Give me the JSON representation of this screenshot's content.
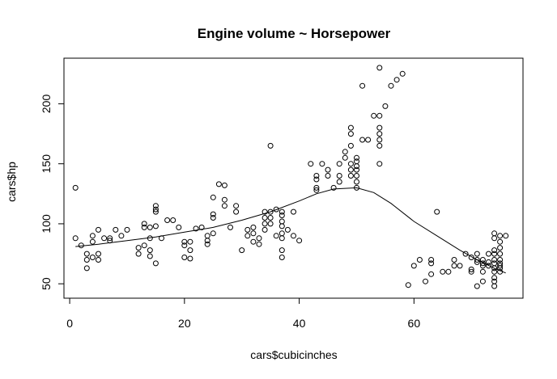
{
  "chart_data": {
    "type": "scatter",
    "title": "Engine volume ~ Horsepower",
    "xlabel": "cars$cubicinches",
    "ylabel": "cars$hp",
    "xlim": [
      -1,
      79
    ],
    "ylim": [
      38,
      238
    ],
    "xticks": [
      0,
      20,
      40,
      60
    ],
    "yticks": [
      50,
      100,
      150,
      200
    ],
    "grid": false,
    "legend": "none",
    "series": [
      {
        "points": [
          [
            1,
            130
          ],
          [
            1,
            88
          ],
          [
            2,
            82
          ],
          [
            3,
            75
          ],
          [
            3,
            70
          ],
          [
            3,
            63
          ],
          [
            4,
            90
          ],
          [
            4,
            85
          ],
          [
            4,
            72
          ],
          [
            5,
            95
          ],
          [
            5,
            75
          ],
          [
            5,
            70
          ],
          [
            6,
            88
          ],
          [
            7,
            88
          ],
          [
            7,
            86
          ],
          [
            8,
            95
          ],
          [
            9,
            90
          ],
          [
            10,
            95
          ],
          [
            12,
            80
          ],
          [
            12,
            75
          ],
          [
            13,
            100
          ],
          [
            13,
            97
          ],
          [
            13,
            82
          ],
          [
            14,
            88
          ],
          [
            14,
            78
          ],
          [
            14,
            73
          ],
          [
            14,
            97
          ],
          [
            15,
            110
          ],
          [
            15,
            115
          ],
          [
            15,
            112
          ],
          [
            15,
            98
          ],
          [
            15,
            67
          ],
          [
            16,
            88
          ],
          [
            17,
            103
          ],
          [
            18,
            103
          ],
          [
            19,
            97
          ],
          [
            20,
            85
          ],
          [
            20,
            82
          ],
          [
            20,
            72
          ],
          [
            21,
            85
          ],
          [
            21,
            78
          ],
          [
            21,
            71
          ],
          [
            22,
            96
          ],
          [
            23,
            97
          ],
          [
            24,
            90
          ],
          [
            24,
            86
          ],
          [
            24,
            83
          ],
          [
            25,
            122
          ],
          [
            25,
            108
          ],
          [
            25,
            105
          ],
          [
            25,
            92
          ],
          [
            26,
            133
          ],
          [
            27,
            132
          ],
          [
            27,
            120
          ],
          [
            27,
            115
          ],
          [
            28,
            97
          ],
          [
            29,
            115
          ],
          [
            29,
            110
          ],
          [
            30,
            78
          ],
          [
            31,
            95
          ],
          [
            31,
            90
          ],
          [
            32,
            97
          ],
          [
            32,
            92
          ],
          [
            32,
            85
          ],
          [
            33,
            88
          ],
          [
            33,
            83
          ],
          [
            34,
            110
          ],
          [
            34,
            105
          ],
          [
            34,
            100
          ],
          [
            34,
            95
          ],
          [
            35,
            165
          ],
          [
            35,
            110
          ],
          [
            35,
            105
          ],
          [
            35,
            100
          ],
          [
            36,
            112
          ],
          [
            36,
            90
          ],
          [
            37,
            110
          ],
          [
            37,
            107
          ],
          [
            37,
            102
          ],
          [
            37,
            98
          ],
          [
            37,
            92
          ],
          [
            37,
            88
          ],
          [
            37,
            78
          ],
          [
            37,
            72
          ],
          [
            38,
            95
          ],
          [
            39,
            110
          ],
          [
            39,
            90
          ],
          [
            40,
            86
          ],
          [
            42,
            150
          ],
          [
            43,
            140
          ],
          [
            43,
            137
          ],
          [
            43,
            130
          ],
          [
            43,
            128
          ],
          [
            44,
            150
          ],
          [
            45,
            145
          ],
          [
            45,
            140
          ],
          [
            46,
            130
          ],
          [
            47,
            150
          ],
          [
            47,
            140
          ],
          [
            47,
            135
          ],
          [
            48,
            160
          ],
          [
            48,
            155
          ],
          [
            49,
            180
          ],
          [
            49,
            175
          ],
          [
            49,
            165
          ],
          [
            49,
            150
          ],
          [
            49,
            145
          ],
          [
            49,
            140
          ],
          [
            50,
            155
          ],
          [
            50,
            152
          ],
          [
            50,
            148
          ],
          [
            50,
            145
          ],
          [
            50,
            140
          ],
          [
            50,
            135
          ],
          [
            50,
            130
          ],
          [
            51,
            215
          ],
          [
            51,
            170
          ],
          [
            52,
            170
          ],
          [
            53,
            190
          ],
          [
            54,
            230
          ],
          [
            54,
            190
          ],
          [
            54,
            180
          ],
          [
            54,
            175
          ],
          [
            54,
            170
          ],
          [
            54,
            165
          ],
          [
            54,
            150
          ],
          [
            55,
            198
          ],
          [
            56,
            215
          ],
          [
            57,
            220
          ],
          [
            58,
            225
          ],
          [
            59,
            49
          ],
          [
            60,
            65
          ],
          [
            61,
            70
          ],
          [
            62,
            52
          ],
          [
            63,
            70
          ],
          [
            63,
            67
          ],
          [
            63,
            58
          ],
          [
            64,
            110
          ],
          [
            65,
            60
          ],
          [
            66,
            60
          ],
          [
            67,
            70
          ],
          [
            67,
            65
          ],
          [
            68,
            65
          ],
          [
            69,
            75
          ],
          [
            70,
            72
          ],
          [
            70,
            62
          ],
          [
            70,
            60
          ],
          [
            71,
            75
          ],
          [
            71,
            70
          ],
          [
            71,
            68
          ],
          [
            71,
            48
          ],
          [
            72,
            70
          ],
          [
            72,
            67
          ],
          [
            72,
            65
          ],
          [
            72,
            60
          ],
          [
            72,
            52
          ],
          [
            73,
            75
          ],
          [
            73,
            68
          ],
          [
            73,
            65
          ],
          [
            74,
            92
          ],
          [
            74,
            88
          ],
          [
            74,
            78
          ],
          [
            74,
            75
          ],
          [
            74,
            70
          ],
          [
            74,
            67
          ],
          [
            74,
            63
          ],
          [
            74,
            60
          ],
          [
            74,
            55
          ],
          [
            74,
            52
          ],
          [
            74,
            48
          ],
          [
            75,
            90
          ],
          [
            75,
            85
          ],
          [
            75,
            80
          ],
          [
            75,
            75
          ],
          [
            75,
            70
          ],
          [
            75,
            67
          ],
          [
            75,
            65
          ],
          [
            75,
            63
          ],
          [
            75,
            60
          ],
          [
            76,
            90
          ]
        ]
      }
    ],
    "smooth_line": [
      [
        1,
        81
      ],
      [
        5,
        83
      ],
      [
        10,
        86
      ],
      [
        15,
        89
      ],
      [
        20,
        93
      ],
      [
        25,
        97
      ],
      [
        30,
        103
      ],
      [
        35,
        110
      ],
      [
        40,
        119
      ],
      [
        43,
        125
      ],
      [
        46,
        129
      ],
      [
        50,
        130
      ],
      [
        53,
        126
      ],
      [
        56,
        117
      ],
      [
        60,
        102
      ],
      [
        64,
        90
      ],
      [
        68,
        78
      ],
      [
        71,
        70
      ],
      [
        74,
        63
      ],
      [
        76,
        59
      ]
    ]
  }
}
